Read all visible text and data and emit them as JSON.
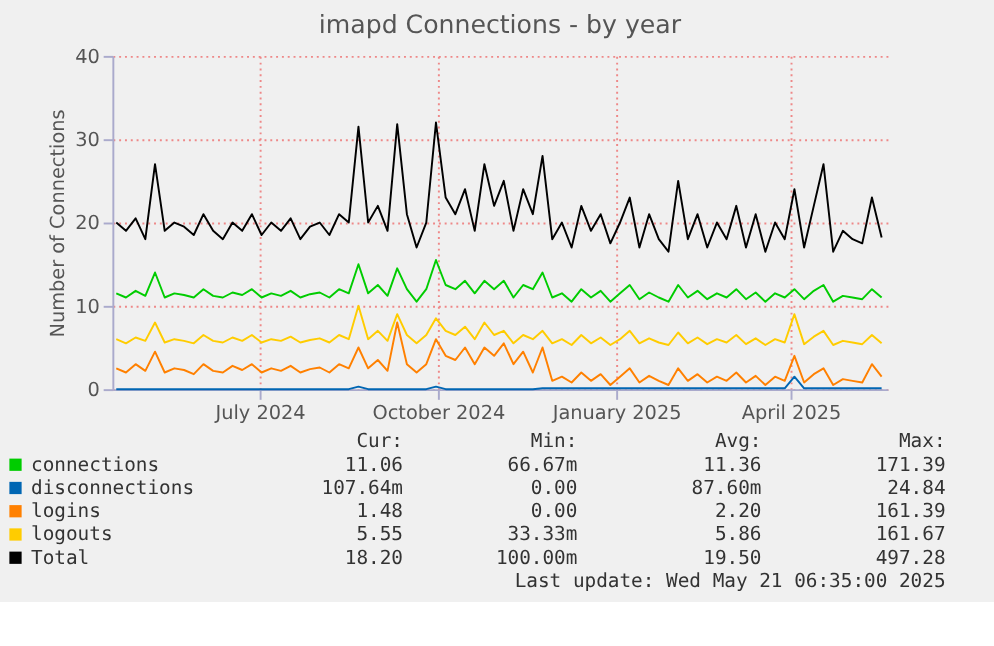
{
  "chart_data": {
    "type": "line",
    "title": "imapd Connections - by year",
    "ylabel": "Number of Connections",
    "x": [
      "2024-04-18",
      "2024-04-23",
      "2024-04-28",
      "2024-05-03",
      "2024-05-08",
      "2024-05-13",
      "2024-05-18",
      "2024-05-23",
      "2024-05-28",
      "2024-06-02",
      "2024-06-07",
      "2024-06-12",
      "2024-06-17",
      "2024-06-22",
      "2024-06-27",
      "2024-07-02",
      "2024-07-07",
      "2024-07-12",
      "2024-07-17",
      "2024-07-22",
      "2024-07-27",
      "2024-08-01",
      "2024-08-06",
      "2024-08-11",
      "2024-08-16",
      "2024-08-21",
      "2024-08-26",
      "2024-08-31",
      "2024-09-05",
      "2024-09-10",
      "2024-09-15",
      "2024-09-20",
      "2024-09-25",
      "2024-09-30",
      "2024-10-05",
      "2024-10-10",
      "2024-10-15",
      "2024-10-20",
      "2024-10-25",
      "2024-10-30",
      "2024-11-04",
      "2024-11-09",
      "2024-11-14",
      "2024-11-19",
      "2024-11-24",
      "2024-11-29",
      "2024-12-04",
      "2024-12-09",
      "2024-12-14",
      "2024-12-19",
      "2024-12-24",
      "2024-12-29",
      "2025-01-03",
      "2025-01-08",
      "2025-01-13",
      "2025-01-18",
      "2025-01-23",
      "2025-01-28",
      "2025-02-02",
      "2025-02-07",
      "2025-02-12",
      "2025-02-17",
      "2025-02-22",
      "2025-02-27",
      "2025-03-04",
      "2025-03-09",
      "2025-03-14",
      "2025-03-19",
      "2025-03-24",
      "2025-03-29",
      "2025-04-03",
      "2025-04-08",
      "2025-04-13",
      "2025-04-18",
      "2025-04-23",
      "2025-04-28",
      "2025-05-03",
      "2025-05-08",
      "2025-05-13",
      "2025-05-18"
    ],
    "xlim": [
      "2024-04-16",
      "2025-05-21"
    ],
    "xticks": [
      {
        "value": "2024-07-01",
        "label": "July 2024"
      },
      {
        "value": "2024-10-01",
        "label": "October 2024"
      },
      {
        "value": "2025-01-01",
        "label": "January 2025"
      },
      {
        "value": "2025-04-01",
        "label": "April 2025"
      }
    ],
    "ylim": [
      0,
      40
    ],
    "yticks": [
      0,
      10,
      20,
      30,
      40
    ],
    "grid": true,
    "legend": "bottom",
    "series": [
      {
        "name": "connections",
        "color": "#00cc00",
        "values": [
          11.5,
          11,
          11.8,
          11.2,
          14,
          11,
          11.5,
          11.3,
          11,
          12,
          11.2,
          11,
          11.6,
          11.3,
          12,
          11,
          11.5,
          11.2,
          11.8,
          11,
          11.4,
          11.6,
          11,
          12,
          11.5,
          15,
          11.5,
          12.5,
          11.2,
          14.5,
          12,
          10.5,
          12,
          15.5,
          12.5,
          12,
          13,
          11.5,
          13,
          12,
          13,
          11,
          12.5,
          12,
          14,
          11,
          11.5,
          10.5,
          12,
          11,
          11.8,
          10.5,
          11.5,
          12.5,
          10.8,
          11.6,
          11,
          10.5,
          12.5,
          11,
          11.8,
          10.8,
          11.5,
          11,
          12,
          10.8,
          11.6,
          10.5,
          11.5,
          11,
          12,
          10.8,
          11.8,
          12.5,
          10.5,
          11.2,
          11,
          10.8,
          12,
          11
        ]
      },
      {
        "name": "disconnections",
        "color": "#0066b3",
        "values": [
          0,
          0,
          0,
          0,
          0,
          0,
          0,
          0,
          0,
          0,
          0,
          0,
          0,
          0,
          0,
          0,
          0,
          0,
          0,
          0,
          0,
          0,
          0,
          0,
          0,
          0.3,
          0,
          0,
          0,
          0,
          0,
          0,
          0,
          0.3,
          0,
          0,
          0,
          0,
          0,
          0,
          0,
          0,
          0,
          0,
          0.1,
          0.1,
          0.1,
          0.1,
          0.1,
          0.1,
          0.1,
          0.1,
          0.1,
          0.1,
          0.1,
          0.1,
          0.1,
          0.1,
          0.1,
          0.1,
          0.1,
          0.1,
          0.1,
          0.1,
          0.1,
          0.1,
          0.1,
          0.1,
          0.1,
          0.1,
          1.5,
          0.1,
          0.1,
          0.1,
          0.1,
          0.1,
          0.1,
          0.1,
          0.1,
          0.1
        ]
      },
      {
        "name": "logins",
        "color": "#ff8000",
        "values": [
          2.5,
          2,
          3,
          2.2,
          4.5,
          2,
          2.5,
          2.3,
          1.8,
          3,
          2.2,
          2,
          2.8,
          2.3,
          3,
          2,
          2.5,
          2.2,
          2.8,
          2,
          2.4,
          2.6,
          2,
          3,
          2.5,
          5,
          2.5,
          3.5,
          2.2,
          8,
          3,
          2,
          3,
          6,
          4,
          3.5,
          5,
          3,
          5,
          4,
          5.5,
          3,
          4.5,
          2,
          5,
          1,
          1.5,
          0.8,
          2,
          1,
          1.8,
          0.5,
          1.5,
          2.5,
          0.8,
          1.6,
          1,
          0.5,
          2.5,
          1,
          1.8,
          0.8,
          1.5,
          1,
          2,
          0.8,
          1.6,
          0.5,
          1.5,
          1,
          4,
          0.8,
          1.8,
          2.5,
          0.5,
          1.2,
          1,
          0.8,
          3,
          1.5
        ]
      },
      {
        "name": "logouts",
        "color": "#ffcc00",
        "values": [
          6,
          5.5,
          6.2,
          5.8,
          8,
          5.6,
          6,
          5.8,
          5.5,
          6.5,
          5.8,
          5.6,
          6.2,
          5.8,
          6.5,
          5.6,
          6,
          5.8,
          6.3,
          5.6,
          5.9,
          6.1,
          5.6,
          6.5,
          6,
          10,
          6,
          7,
          5.8,
          9,
          6.5,
          5.5,
          6.5,
          8.5,
          7,
          6.5,
          7.5,
          6,
          8,
          6.5,
          7,
          5.5,
          6.5,
          6,
          7,
          5.5,
          6,
          5.3,
          6.5,
          5.5,
          6.2,
          5.3,
          6,
          7,
          5.5,
          6.1,
          5.6,
          5.3,
          6.8,
          5.5,
          6.2,
          5.4,
          6,
          5.6,
          6.5,
          5.4,
          6.1,
          5.3,
          6,
          5.6,
          9,
          5.4,
          6.3,
          7,
          5.3,
          5.8,
          5.6,
          5.4,
          6.5,
          5.5
        ]
      },
      {
        "name": "Total",
        "color": "#000000",
        "values": [
          20,
          19,
          20.5,
          18,
          27,
          19,
          20,
          19.5,
          18.5,
          21,
          19,
          18,
          20,
          19,
          21,
          18.5,
          20,
          19,
          20.5,
          18,
          19.5,
          20,
          18.5,
          21,
          20,
          31.5,
          20,
          22,
          19,
          31.8,
          21,
          17,
          20,
          32,
          23,
          21,
          24,
          19,
          27,
          22,
          25,
          19,
          24,
          21,
          28,
          18,
          20,
          17,
          22,
          19,
          21,
          17.5,
          20,
          23,
          17,
          21,
          18,
          16.5,
          25,
          18,
          21,
          17,
          20,
          18,
          22,
          17,
          21,
          16.5,
          20,
          18,
          24,
          17,
          22,
          27,
          16.5,
          19,
          18,
          17.5,
          23,
          18.2
        ]
      }
    ],
    "annotations": [
      "Cur:",
      "Min:",
      "Avg:",
      "Max:",
      "11.06",
      "66.67m",
      "11.36",
      "171.39",
      "107.64m",
      "0.00",
      "87.60m",
      "24.84",
      "1.48",
      "0.00",
      "2.20",
      "161.39",
      "5.55",
      "33.33m",
      "5.86",
      "161.67",
      "18.20",
      "100.00m",
      "19.50",
      "497.28",
      "Last update: Wed May 21 06:35:00 2025"
    ]
  }
}
